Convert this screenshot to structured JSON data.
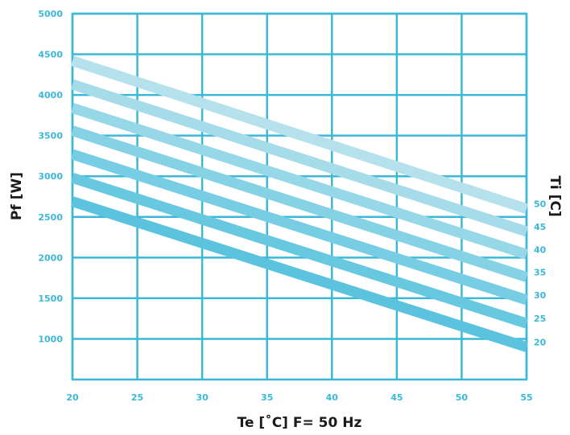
{
  "chart_data": {
    "type": "line",
    "title": "",
    "xlabel": "Te [˚C] F= 50 Hz",
    "ylabel": "Pf [W]",
    "right_label": "Ti [C]",
    "xlim": [
      20,
      55
    ],
    "ylim": [
      500,
      5000
    ],
    "x_ticks": [
      "20",
      "25",
      "30",
      "35",
      "40",
      "45",
      "50",
      "55"
    ],
    "y_ticks": [
      "1000",
      "1500",
      "2000",
      "2500",
      "3000",
      "3500",
      "4000",
      "4500",
      "5000"
    ],
    "grid": true,
    "series": [
      {
        "name": "20",
        "color": "#5bc3dd",
        "x": [
          20,
          55
        ],
        "y": [
          2690,
          900
        ]
      },
      {
        "name": "25",
        "color": "#68c8e0",
        "x": [
          20,
          55
        ],
        "y": [
          2980,
          1190
        ]
      },
      {
        "name": "30",
        "color": "#77cde3",
        "x": [
          20,
          55
        ],
        "y": [
          3270,
          1480
        ]
      },
      {
        "name": "35",
        "color": "#86d2e5",
        "x": [
          20,
          55
        ],
        "y": [
          3560,
          1760
        ]
      },
      {
        "name": "40",
        "color": "#96d7e8",
        "x": [
          20,
          55
        ],
        "y": [
          3840,
          2040
        ]
      },
      {
        "name": "45",
        "color": "#a6dcea",
        "x": [
          20,
          55
        ],
        "y": [
          4130,
          2320
        ]
      },
      {
        "name": "50",
        "color": "#b5e1ec",
        "x": [
          20,
          55
        ],
        "y": [
          4420,
          2600
        ]
      }
    ],
    "colors": {
      "grid": "#3bb8d8",
      "tick_text": "#3bb8d8",
      "title_text": "#1a1a1a"
    }
  }
}
